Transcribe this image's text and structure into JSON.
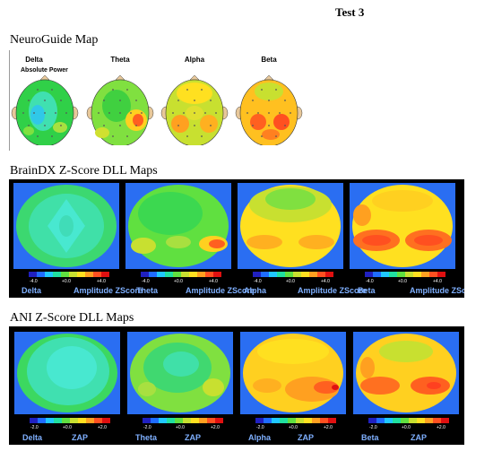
{
  "page_title": "Test 3",
  "sections": {
    "neuroguide": {
      "title": "NeuroGuide Map",
      "subtitle": "Absolute Power",
      "bands": [
        "Delta",
        "Theta",
        "Alpha",
        "Beta"
      ]
    },
    "braindx": {
      "title": "BrainDX Z-Score DLL Maps",
      "ticks": [
        "-4.0",
        "+0.0",
        "+4.0"
      ],
      "maps": [
        {
          "band": "Delta",
          "label": "Amplitude ZScore"
        },
        {
          "band": "Theta",
          "label": "Amplitude ZScore"
        },
        {
          "band": "Alpha",
          "label": "Amplitude ZScore"
        },
        {
          "band": "Beta",
          "label": "Amplitude ZScore"
        }
      ]
    },
    "ani": {
      "title": "ANI Z-Score DLL Maps",
      "ticks": [
        "-2.0",
        "+0.0",
        "+2.0"
      ],
      "maps": [
        {
          "band": "Delta",
          "label": "ZAP"
        },
        {
          "band": "Theta",
          "label": "ZAP"
        },
        {
          "band": "Alpha",
          "label": "ZAP"
        },
        {
          "band": "Beta",
          "label": "ZAP"
        }
      ]
    }
  },
  "colors": {
    "panel_bg": "#000000",
    "map_bg": "#2a6ef2",
    "caption": "#7fb0ff",
    "scale": [
      "#2020c0",
      "#1f6cff",
      "#20c8ff",
      "#20e0a0",
      "#60e040",
      "#c8e030",
      "#ffe020",
      "#ffa020",
      "#ff5020",
      "#e01010"
    ]
  }
}
